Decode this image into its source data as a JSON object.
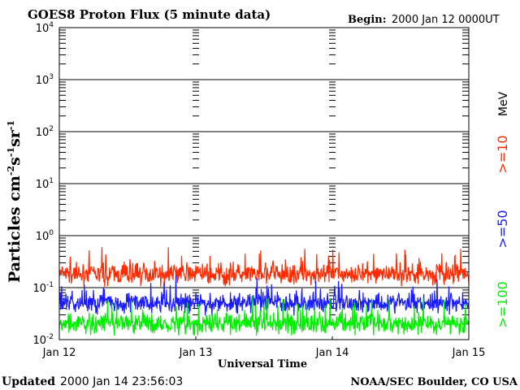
{
  "header": {
    "title": "GOES8 Proton Flux (5 minute data)",
    "begin_label": "Begin:",
    "begin_value": "2000 Jan 12 0000UT"
  },
  "footer": {
    "updated_label": "Updated",
    "updated_value": "2000 Jan 14 23:56:03",
    "credit": "NOAA/SEC Boulder, CO USA"
  },
  "chart_data": {
    "type": "line",
    "title": "GOES8 Proton Flux (5 minute data)",
    "xlabel": "Universal Time",
    "ylabel": "Particles cm⁻²s⁻¹sr⁻¹",
    "y_scale": "log",
    "ylim": [
      0.01,
      10000
    ],
    "y_ticks": [
      {
        "value": 0.01,
        "base": "10",
        "exp": "-2"
      },
      {
        "value": 0.1,
        "base": "10",
        "exp": "-1"
      },
      {
        "value": 1,
        "base": "10",
        "exp": "0"
      },
      {
        "value": 10,
        "base": "10",
        "exp": "1"
      },
      {
        "value": 100,
        "base": "10",
        "exp": "2"
      },
      {
        "value": 1000,
        "base": "10",
        "exp": "3"
      },
      {
        "value": 10000,
        "base": "10",
        "exp": "4"
      }
    ],
    "x_days": [
      0,
      1,
      2,
      3
    ],
    "x_tick_labels": [
      "Jan 12",
      "Jan 13",
      "Jan 14",
      "Jan 15"
    ],
    "legend_unit": "MeV",
    "grid": true,
    "series": [
      {
        "name": ">=10",
        "color": "#ff2a00",
        "typical": 0.18,
        "min": 0.08,
        "max": 0.6
      },
      {
        "name": ">=50",
        "color": "#1a1aff",
        "typical": 0.05,
        "min": 0.02,
        "max": 0.17
      },
      {
        "name": ">=100",
        "color": "#00ee00",
        "typical": 0.02,
        "min": 0.012,
        "max": 0.07
      }
    ]
  }
}
